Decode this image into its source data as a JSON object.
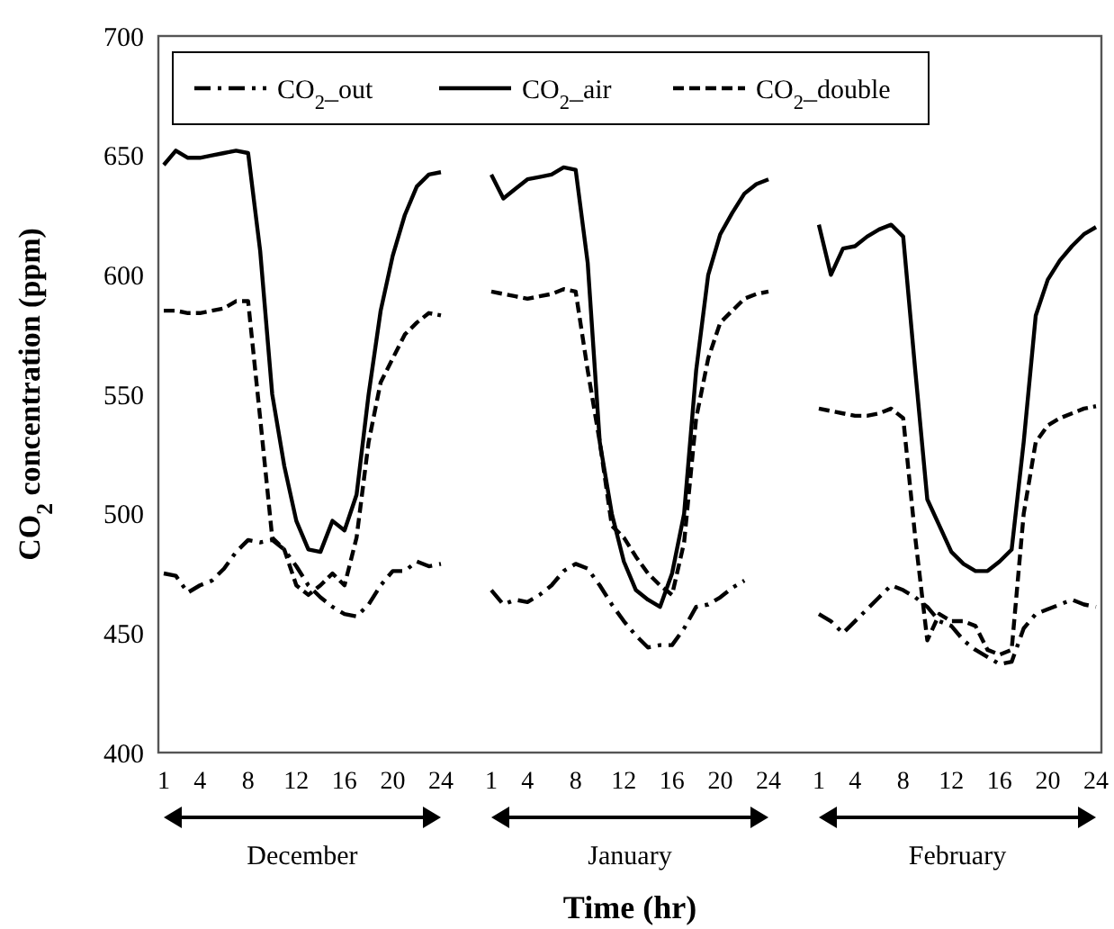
{
  "chart_data": [
    {
      "type": "line",
      "xlabel": "December",
      "ylabel": "CO$_{2}$ concentration (ppm)",
      "annotations": [
        "Time (hr)"
      ],
      "categories": [
        "1",
        null,
        null,
        "4",
        null,
        null,
        null,
        "8",
        null,
        null,
        null,
        "12",
        null,
        null,
        null,
        "16",
        null,
        null,
        null,
        "20",
        null,
        null,
        null,
        "24"
      ],
      "ylim": [
        400,
        700
      ],
      "yticks": [
        400,
        450,
        500,
        550,
        600,
        650,
        700
      ],
      "legend": "top right",
      "grid": false,
      "series": [
        {
          "name": "CO$_{2}$_out",
          "color": "#000000",
          "line_style": "dashdot",
          "values": [
            475,
            474,
            467,
            470,
            472,
            477,
            484,
            489,
            488,
            489,
            485,
            478,
            470,
            465,
            461,
            458,
            457,
            462,
            470,
            476,
            476,
            480,
            478,
            479
          ]
        },
        {
          "name": "CO$_{2}$_air",
          "color": "#000000",
          "line_style": "solid",
          "values": [
            646,
            652,
            649,
            649,
            650,
            651,
            652,
            651,
            610,
            550,
            520,
            497,
            485,
            484,
            497,
            493,
            508,
            550,
            585,
            608,
            625,
            637,
            642,
            643
          ]
        },
        {
          "name": "CO$_{2}$_double",
          "color": "#000000",
          "line_style": "dashed",
          "values": [
            585,
            585,
            584,
            584,
            585,
            586,
            589,
            589,
            540,
            490,
            485,
            470,
            466,
            470,
            475,
            470,
            490,
            530,
            555,
            565,
            575,
            580,
            584,
            583
          ]
        }
      ]
    },
    {
      "type": "line",
      "xlabel": "January",
      "categories": [
        "1",
        null,
        null,
        "4",
        null,
        null,
        null,
        "8",
        null,
        null,
        null,
        "12",
        null,
        null,
        null,
        "16",
        null,
        null,
        null,
        "20",
        null,
        null,
        null,
        "24"
      ],
      "ylim": [
        400,
        700
      ],
      "tick_labels": "x",
      "series": [
        {
          "color": "#000000",
          "line_style": "dashdot",
          "values": [
            468,
            462,
            464,
            463,
            466,
            470,
            476,
            479,
            477,
            470,
            462,
            455,
            449,
            444,
            445,
            445,
            452,
            461,
            462,
            465,
            469,
            472,
            null,
            null
          ]
        },
        {
          "color": "#000000",
          "line_style": "solid",
          "values": [
            642,
            632,
            636,
            640,
            641,
            642,
            645,
            644,
            605,
            530,
            500,
            480,
            468,
            464,
            461,
            475,
            500,
            560,
            600,
            617,
            626,
            634,
            638,
            640
          ]
        },
        {
          "color": "#000000",
          "line_style": "dashed",
          "values": [
            593,
            592,
            591,
            590,
            591,
            592,
            594,
            593,
            560,
            530,
            495,
            490,
            482,
            475,
            470,
            466,
            488,
            540,
            565,
            580,
            585,
            590,
            592,
            593
          ]
        }
      ]
    },
    {
      "type": "line",
      "xlabel": "February",
      "categories": [
        "1",
        null,
        null,
        "4",
        null,
        null,
        null,
        "8",
        null,
        null,
        null,
        "12",
        null,
        null,
        null,
        "16",
        null,
        null,
        null,
        "20",
        null,
        null,
        null,
        "24"
      ],
      "ylim": [
        400,
        700
      ],
      "tick_labels": "x",
      "series": [
        {
          "color": "#000000",
          "line_style": "dashdot",
          "values": [
            458,
            455,
            450,
            455,
            460,
            465,
            470,
            468,
            465,
            461,
            455,
            453,
            447,
            443,
            440,
            437,
            438,
            452,
            458,
            460,
            462,
            464,
            462,
            461
          ]
        },
        {
          "color": "#000000",
          "line_style": "solid",
          "values": [
            621,
            600,
            611,
            612,
            616,
            619,
            621,
            616,
            560,
            506,
            495,
            484,
            479,
            476,
            476,
            480,
            485,
            530,
            583,
            598,
            606,
            612,
            617,
            620
          ]
        },
        {
          "color": "#000000",
          "line_style": "dashed",
          "values": [
            544,
            543,
            542,
            541,
            541,
            542,
            544,
            540,
            490,
            447,
            458,
            455,
            455,
            453,
            443,
            441,
            443,
            500,
            530,
            537,
            540,
            542,
            544,
            545
          ]
        }
      ]
    }
  ]
}
